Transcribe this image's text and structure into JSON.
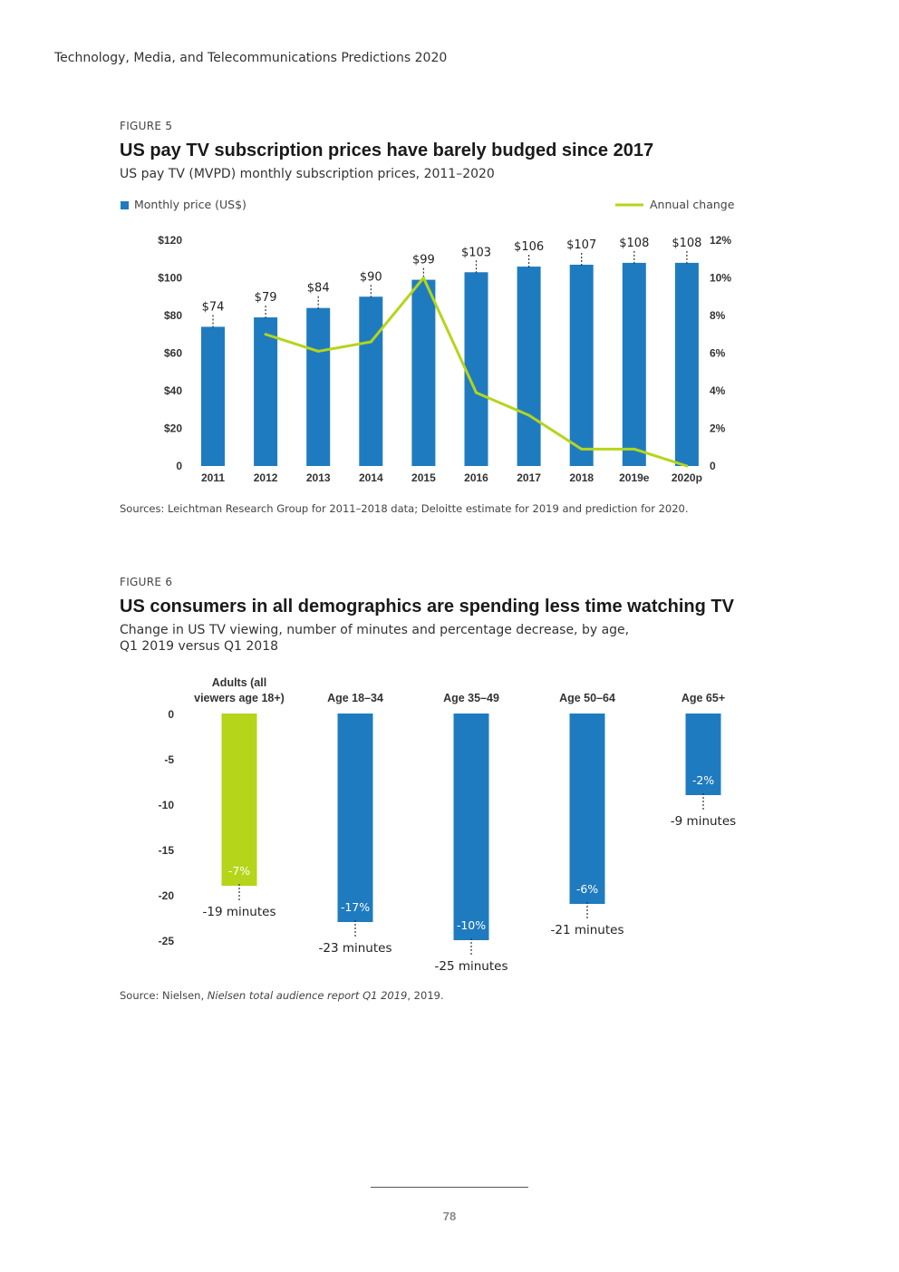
{
  "running_header": "Technology, Media, and Telecommunications Predictions 2020",
  "page_number": "78",
  "colors": {
    "bar_blue": "#1f7bbf",
    "line_green": "#b5d51a",
    "bar_green": "#b5d51a"
  },
  "figure5": {
    "label": "FIGURE 5",
    "title": "US pay TV subscription prices have barely budged since 2017",
    "subtitle": "US pay TV (MVPD) monthly subscription prices, 2011–2020",
    "source": "Sources: Leichtman Research Group for 2011–2018 data; Deloitte estimate for 2019 and prediction for 2020.",
    "chart_data": {
      "type": "bar",
      "title": "US pay TV subscription prices have barely budged since 2017",
      "categories": [
        "2011",
        "2012",
        "2013",
        "2014",
        "2015",
        "2016",
        "2017",
        "2018",
        "2019e",
        "2020p"
      ],
      "series": [
        {
          "name": "Monthly price (US$)",
          "type": "bar",
          "axis": "left",
          "values": [
            74,
            79,
            84,
            90,
            99,
            103,
            106,
            107,
            108,
            108
          ],
          "data_labels": [
            "$74",
            "$79",
            "$84",
            "$90",
            "$99",
            "$103",
            "$106",
            "$107",
            "$108",
            "$108"
          ]
        },
        {
          "name": "Annual change",
          "type": "line",
          "axis": "right",
          "values": [
            null,
            7.0,
            6.1,
            6.6,
            10.0,
            3.9,
            2.7,
            0.9,
            0.9,
            0.0
          ]
        }
      ],
      "y_left": {
        "range": [
          0,
          120
        ],
        "ticks": [
          0,
          20,
          40,
          60,
          80,
          100,
          120
        ],
        "tick_labels": [
          "0",
          "$20",
          "$40",
          "$60",
          "$80",
          "$100",
          "$120"
        ]
      },
      "y_right": {
        "range": [
          0,
          12
        ],
        "ticks": [
          0,
          2,
          4,
          6,
          8,
          10,
          12
        ],
        "tick_labels": [
          "0",
          "2%",
          "4%",
          "6%",
          "8%",
          "10%",
          "12%"
        ]
      },
      "legend_position": "top",
      "grid": false
    }
  },
  "figure6": {
    "label": "FIGURE 6",
    "title": "US consumers in all demographics are spending less time watching TV",
    "subtitle_lines": [
      "Change in US TV viewing, number of minutes and percentage decrease, by age,",
      "Q1 2019 versus Q1 2018"
    ],
    "source_prefix": "Source: Nielsen, ",
    "source_italic": "Nielsen total audience report Q1 2019",
    "source_suffix": ", 2019.",
    "chart_data": {
      "type": "bar",
      "categories": [
        [
          "Adults (all",
          "viewers age 18+)"
        ],
        [
          "Age 18–34"
        ],
        [
          "Age 35–49"
        ],
        [
          "Age 50–64"
        ],
        [
          "Age 65+"
        ]
      ],
      "values": [
        -19,
        -23,
        -25,
        -21,
        -9
      ],
      "percent_labels": [
        "-7%",
        "-17%",
        "-10%",
        "-6%",
        "-2%"
      ],
      "minute_labels": [
        "-19 minutes",
        "-23 minutes",
        "-25 minutes",
        "-21 minutes",
        "-9 minutes"
      ],
      "highlight_index": 0,
      "y": {
        "range": [
          -25,
          0
        ],
        "ticks": [
          0,
          -5,
          -10,
          -15,
          -20,
          -25
        ],
        "tick_labels": [
          "0",
          "-5",
          "-10",
          "-15",
          "-20",
          "-25"
        ]
      },
      "grid": false
    }
  }
}
